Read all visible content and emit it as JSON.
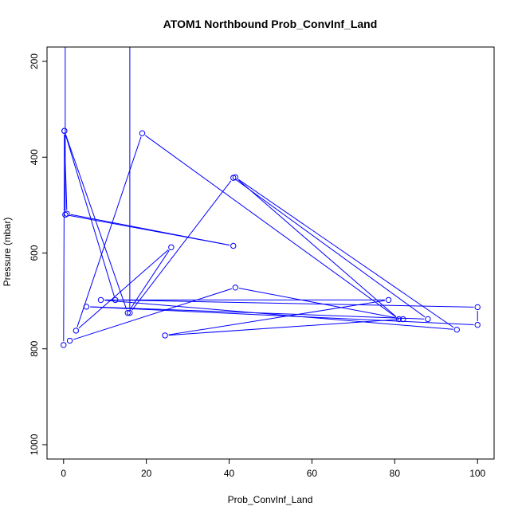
{
  "chart_data": {
    "type": "line",
    "title": "ATOM1 Northbound Prob_ConvInf_Land",
    "xlabel": "Prob_ConvInf_Land",
    "ylabel": "Pressure (mbar)",
    "xlim": [
      -4,
      104
    ],
    "ylim": [
      1030,
      170
    ],
    "y_axis_inverted": true,
    "x_ticks": [
      0,
      20,
      40,
      60,
      80,
      100
    ],
    "y_ticks": [
      200,
      400,
      600,
      800,
      1000
    ],
    "grid": false,
    "series_color": "#0000ff",
    "series": [
      {
        "points": [
          [
            0.4,
            100
          ],
          [
            0.4,
            520
          ],
          [
            41.0,
            585
          ],
          [
            0.8,
            518
          ],
          [
            0.2,
            345
          ],
          [
            15.5,
            725
          ],
          [
            26.0,
            588
          ],
          [
            3.0,
            762
          ],
          [
            19.0,
            350
          ],
          [
            81.0,
            738
          ],
          [
            41.5,
            442
          ],
          [
            95.0,
            760
          ],
          [
            9.0,
            698
          ],
          [
            78.5,
            698
          ],
          [
            24.5,
            772
          ],
          [
            82.0,
            738
          ],
          [
            41.5,
            672
          ],
          [
            1.5,
            783
          ],
          [
            0.0,
            792
          ],
          [
            0.2,
            345
          ],
          [
            12.5,
            698
          ],
          [
            100.0,
            713
          ],
          [
            100.0,
            750
          ],
          [
            5.5,
            712
          ],
          [
            88.0,
            738
          ],
          [
            41.0,
            443
          ],
          [
            16.0,
            725
          ],
          [
            16.0,
            120
          ]
        ]
      }
    ]
  }
}
